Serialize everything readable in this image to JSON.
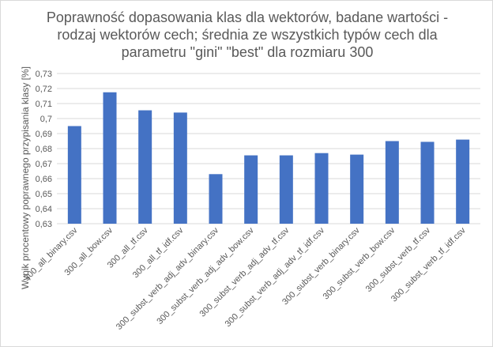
{
  "chart_data": {
    "type": "bar",
    "title_lines": [
      "Poprawność dopasowania klas dla wektorów, badane wartości -",
      "rodzaj wektorów cech; średnia ze wszystkich typów cech dla",
      "parametru \"gini\" \"best\" dla rozmiaru 300"
    ],
    "xlabel": "",
    "ylabel": "Wynik procentowy poprawnego przypisania klasy [%]",
    "ylim": [
      0.63,
      0.73
    ],
    "y_ticks": [
      "0,63",
      "0,64",
      "0,65",
      "0,66",
      "0,67",
      "0,68",
      "0,69",
      "0,7",
      "0,71",
      "0,72",
      "0,73"
    ],
    "grid": true,
    "legend": "none",
    "bar_color": "#4472c4",
    "categories": [
      "300_all_binary.csv",
      "300_all_bow.csv",
      "300_all_tf.csv",
      "300_all_tf_idf.csv",
      "300_subst_verb_adj_adv_binary.csv",
      "300_subst_verb_adj_adv_bow.csv",
      "300_subst_verb_adj_adv_tf.csv",
      "300_subst_verb_adj_adv_tf_idf.csv",
      "300_subst_verb_binary.csv",
      "300_subst_verb_bow.csv",
      "300_subst_verb_tf.csv",
      "300_subst_verb_tf_idf.csv"
    ],
    "values": [
      0.695,
      0.7175,
      0.7055,
      0.704,
      0.663,
      0.6755,
      0.6755,
      0.677,
      0.676,
      0.685,
      0.6845,
      0.686
    ]
  }
}
